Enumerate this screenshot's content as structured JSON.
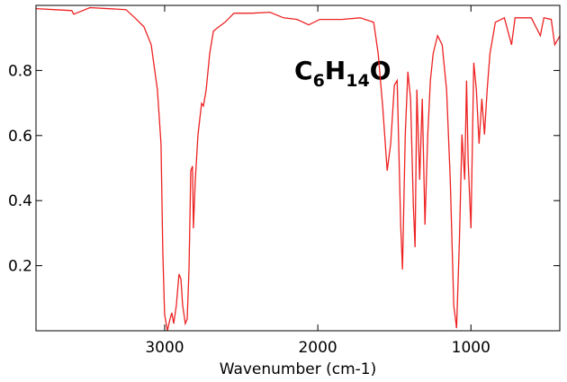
{
  "chart_data": {
    "type": "line",
    "annotation": [
      "C",
      "6",
      "H",
      "14",
      "O"
    ],
    "xlabel": "Wavenumber (cm-1)",
    "xlim": [
      3840,
      420
    ],
    "xticks": [
      3000,
      2000,
      1000
    ],
    "ylim": [
      0,
      1.0
    ],
    "yticks": [
      0.2,
      0.4,
      0.6,
      0.8
    ],
    "series": [
      {
        "color": "#ee2222",
        "x": [
          3840,
          3724,
          3606,
          3594,
          3488,
          3253,
          3194,
          3135,
          3088,
          3047,
          3024,
          3012,
          3000,
          2982,
          2965,
          2953,
          2941,
          2924,
          2906,
          2894,
          2882,
          2865,
          2853,
          2841,
          2829,
          2818,
          2812,
          2800,
          2782,
          2759,
          2747,
          2729,
          2706,
          2682,
          2647,
          2606,
          2547,
          2429,
          2312,
          2224,
          2135,
          2059,
          1988,
          1841,
          1724,
          1635,
          1606,
          1576,
          1547,
          1524,
          1500,
          1482,
          1459,
          1447,
          1429,
          1412,
          1394,
          1376,
          1365,
          1353,
          1335,
          1318,
          1300,
          1282,
          1265,
          1247,
          1218,
          1188,
          1159,
          1135,
          1112,
          1094,
          1076,
          1059,
          1041,
          1029,
          1018,
          1000,
          982,
          965,
          947,
          929,
          912,
          894,
          876,
          841,
          782,
          735,
          712,
          606,
          547,
          524,
          476,
          453,
          418
        ],
        "values": [
          0.99,
          0.987,
          0.984,
          0.973,
          0.993,
          0.987,
          0.962,
          0.934,
          0.879,
          0.741,
          0.575,
          0.243,
          0.05,
          0,
          0.036,
          0.055,
          0.022,
          0.077,
          0.174,
          0.16,
          0.077,
          0.022,
          0.036,
          0.188,
          0.492,
          0.506,
          0.315,
          0.464,
          0.603,
          0.699,
          0.691,
          0.741,
          0.852,
          0.921,
          0.934,
          0.948,
          0.976,
          0.976,
          0.979,
          0.962,
          0.957,
          0.94,
          0.957,
          0.957,
          0.962,
          0.948,
          0.852,
          0.686,
          0.492,
          0.575,
          0.755,
          0.769,
          0.326,
          0.188,
          0.603,
          0.796,
          0.713,
          0.382,
          0.257,
          0.741,
          0.464,
          0.713,
          0.326,
          0.603,
          0.769,
          0.852,
          0.907,
          0.879,
          0.741,
          0.464,
          0.077,
          0.008,
          0.271,
          0.603,
          0.464,
          0.769,
          0.519,
          0.315,
          0.824,
          0.741,
          0.575,
          0.713,
          0.603,
          0.741,
          0.852,
          0.948,
          0.962,
          0.879,
          0.962,
          0.962,
          0.907,
          0.962,
          0.957,
          0.879,
          0.907
        ]
      }
    ]
  }
}
